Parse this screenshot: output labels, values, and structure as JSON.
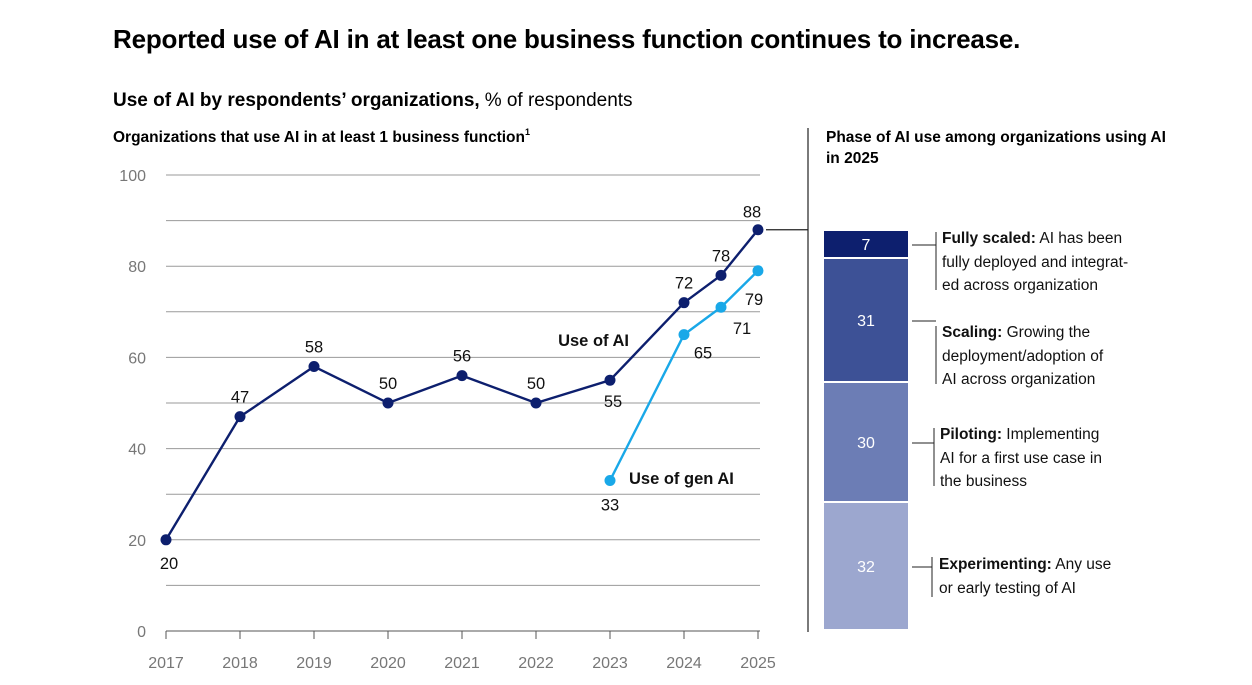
{
  "title": "Reported use of AI in at least one business function continues to increase.",
  "subtitle": {
    "bold": "Use of AI by respondents’ organizations,",
    "light": "% of respondents"
  },
  "left_heading": {
    "text": "Organizations that use AI in at least 1 business function",
    "footnote": "1"
  },
  "right_heading": "Phase of AI use among organizations using AI in 2025",
  "colors": {
    "ai_line": "#0d1f6e",
    "genai_line": "#19a8e8",
    "grid": "#9a9a9a",
    "axis_text": "#777777",
    "fully_scaled": "#0d1f6e",
    "scaling": "#3d5196",
    "piloting": "#6c7db5",
    "experimenting": "#9ca7cf"
  },
  "chart_data": [
    {
      "type": "line",
      "title": "Organizations that use AI in at least 1 business function",
      "ylim": [
        0,
        100
      ],
      "yticks": [
        0,
        20,
        40,
        60,
        80,
        100
      ],
      "grid": true,
      "x_tick_labels": [
        "2017",
        "2018",
        "2019",
        "2020",
        "2021",
        "2022",
        "2023",
        "2024",
        "2025"
      ],
      "series": [
        {
          "name": "Use of AI",
          "x": [
            2017,
            2018,
            2019,
            2020,
            2021,
            2022,
            2023,
            2024,
            2024.5,
            2025
          ],
          "values": [
            20,
            47,
            58,
            50,
            56,
            50,
            55,
            72,
            78,
            88
          ],
          "labels": [
            "20",
            "47",
            "58",
            "50",
            "56",
            "50",
            "55",
            "72",
            "78",
            "88"
          ]
        },
        {
          "name": "Use of gen AI",
          "x": [
            2023,
            2024,
            2024.5,
            2025
          ],
          "values": [
            33,
            65,
            71,
            79
          ],
          "labels": [
            "33",
            "65",
            "71",
            "79"
          ]
        }
      ]
    },
    {
      "type": "bar",
      "stacked": true,
      "title": "Phase of AI use among organizations using AI in 2025",
      "segments": [
        {
          "label": "Fully scaled",
          "value": 7,
          "description": "AI has been fully deployed and integrat- ed across organization"
        },
        {
          "label": "Scaling",
          "value": 31,
          "description": "Growing the deployment/adoption of AI across organization"
        },
        {
          "label": "Piloting",
          "value": 30,
          "description": "Implementing AI for a first use case in the business"
        },
        {
          "label": "Experimenting",
          "value": 32,
          "description": "Any use or early testing of AI"
        }
      ]
    }
  ],
  "annotations": [
    {
      "bold": "Fully scaled:",
      "lines": [
        " AI has been",
        "fully deployed and integrat-",
        "ed across organization"
      ]
    },
    {
      "bold": "Scaling:",
      "lines": [
        " Growing the",
        "deployment/adoption of",
        "AI across organization"
      ]
    },
    {
      "bold": "Piloting:",
      "lines": [
        " Implementing",
        "AI for a first use case in",
        "the business"
      ]
    },
    {
      "bold": "Experimenting:",
      "lines": [
        " Any use",
        "or early testing of AI"
      ]
    }
  ]
}
